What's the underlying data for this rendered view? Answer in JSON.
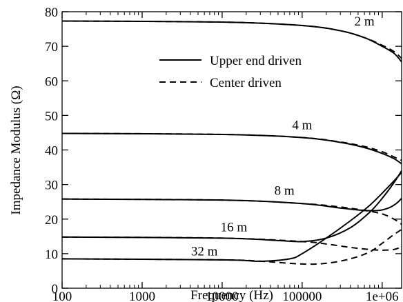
{
  "chart_data": {
    "type": "line",
    "title": "",
    "xlabel": "Frequency (Hz)",
    "ylabel": "Impedance Modulus (Ω)",
    "xscale": "log",
    "xlim": [
      100,
      1750000
    ],
    "ylim": [
      0,
      80
    ],
    "xticks": [
      100,
      1000,
      10000,
      100000,
      1000000
    ],
    "xtick_labels": [
      "100",
      "1000",
      "10000",
      "100000",
      "1e+06"
    ],
    "yticks": [
      0,
      10,
      20,
      30,
      40,
      50,
      60,
      70,
      80
    ],
    "ytick_labels": [
      "0",
      "10",
      "20",
      "30",
      "40",
      "50",
      "60",
      "70",
      "80"
    ],
    "grid": false,
    "legend": {
      "position": "top-right",
      "entries": [
        {
          "label": "Upper end driven",
          "dash": "solid"
        },
        {
          "label": "Center driven",
          "dash": "dashed"
        }
      ]
    },
    "annotations": [
      {
        "text": "2 m",
        "x": 600000,
        "y": 76
      },
      {
        "text": "4 m",
        "x": 100000,
        "y": 46
      },
      {
        "text": "8 m",
        "x": 60000,
        "y": 27
      },
      {
        "text": "16 m",
        "x": 14000,
        "y": 16.5
      },
      {
        "text": "32 m",
        "x": 6000,
        "y": 9.5
      }
    ],
    "series": [
      {
        "name": "2 m, upper end driven",
        "dash": "solid",
        "x": [
          100,
          10000,
          100000,
          300000,
          600000,
          1000000,
          1400000,
          1750000
        ],
        "y": [
          77.3,
          77.0,
          76.0,
          74.5,
          72.5,
          70.0,
          68.0,
          65.5
        ]
      },
      {
        "name": "2 m, center driven",
        "dash": "dashed",
        "x": [
          100,
          10000,
          100000,
          300000,
          600000,
          1000000,
          1400000,
          1750000
        ],
        "y": [
          77.3,
          77.0,
          76.0,
          74.5,
          72.5,
          70.3,
          68.5,
          66.5
        ]
      },
      {
        "name": "4 m, upper end driven",
        "dash": "solid",
        "x": [
          100,
          10000,
          100000,
          300000,
          600000,
          1000000,
          1400000,
          1750000
        ],
        "y": [
          44.8,
          44.5,
          43.6,
          42.2,
          40.7,
          39.0,
          37.5,
          36.0
        ]
      },
      {
        "name": "4 m, center driven",
        "dash": "dashed",
        "x": [
          100,
          10000,
          100000,
          300000,
          600000,
          1000000,
          1400000,
          1750000
        ],
        "y": [
          44.8,
          44.5,
          43.6,
          42.3,
          41.0,
          39.5,
          38.0,
          37.0
        ]
      },
      {
        "name": "8 m, upper end driven",
        "dash": "solid",
        "x": [
          100,
          10000,
          100000,
          300000,
          600000,
          900000,
          1200000,
          1500000,
          1750000
        ],
        "y": [
          25.8,
          25.5,
          24.5,
          23.2,
          22.5,
          22.5,
          23.2,
          24.5,
          26.0
        ]
      },
      {
        "name": "8 m, center driven",
        "dash": "dashed",
        "x": [
          100,
          10000,
          100000,
          300000,
          600000,
          1000000,
          1400000,
          1750000
        ],
        "y": [
          25.8,
          25.5,
          24.5,
          23.5,
          22.5,
          21.5,
          20.0,
          18.5
        ]
      },
      {
        "name": "16 m, upper end driven",
        "dash": "solid",
        "x": [
          100,
          10000,
          50000,
          100000,
          200000,
          400000,
          700000,
          1000000,
          1400000,
          1750000
        ],
        "y": [
          14.8,
          14.5,
          13.8,
          13.5,
          14.5,
          17.5,
          22.0,
          26.0,
          30.5,
          34.0
        ]
      },
      {
        "name": "16 m, center driven",
        "dash": "dashed",
        "x": [
          100,
          10000,
          100000,
          200000,
          400000,
          700000,
          1000000,
          1400000,
          1750000
        ],
        "y": [
          14.8,
          14.5,
          13.5,
          12.8,
          11.8,
          11.2,
          11.0,
          11.2,
          12.0
        ]
      },
      {
        "name": "32 m, upper end driven",
        "dash": "solid",
        "x": [
          100,
          10000,
          30000,
          70000,
          100000,
          200000,
          400000,
          700000,
          1000000,
          1400000,
          1750000
        ],
        "y": [
          8.5,
          8.2,
          7.8,
          8.5,
          10.0,
          14.5,
          19.5,
          24.0,
          27.5,
          31.0,
          33.5
        ]
      },
      {
        "name": "32 m, center driven",
        "dash": "dashed",
        "x": [
          100,
          10000,
          30000,
          100000,
          200000,
          400000,
          700000,
          1000000,
          1400000,
          1750000
        ],
        "y": [
          8.5,
          8.2,
          7.8,
          7.0,
          7.2,
          8.5,
          10.5,
          13.0,
          15.5,
          17.0
        ]
      }
    ]
  }
}
